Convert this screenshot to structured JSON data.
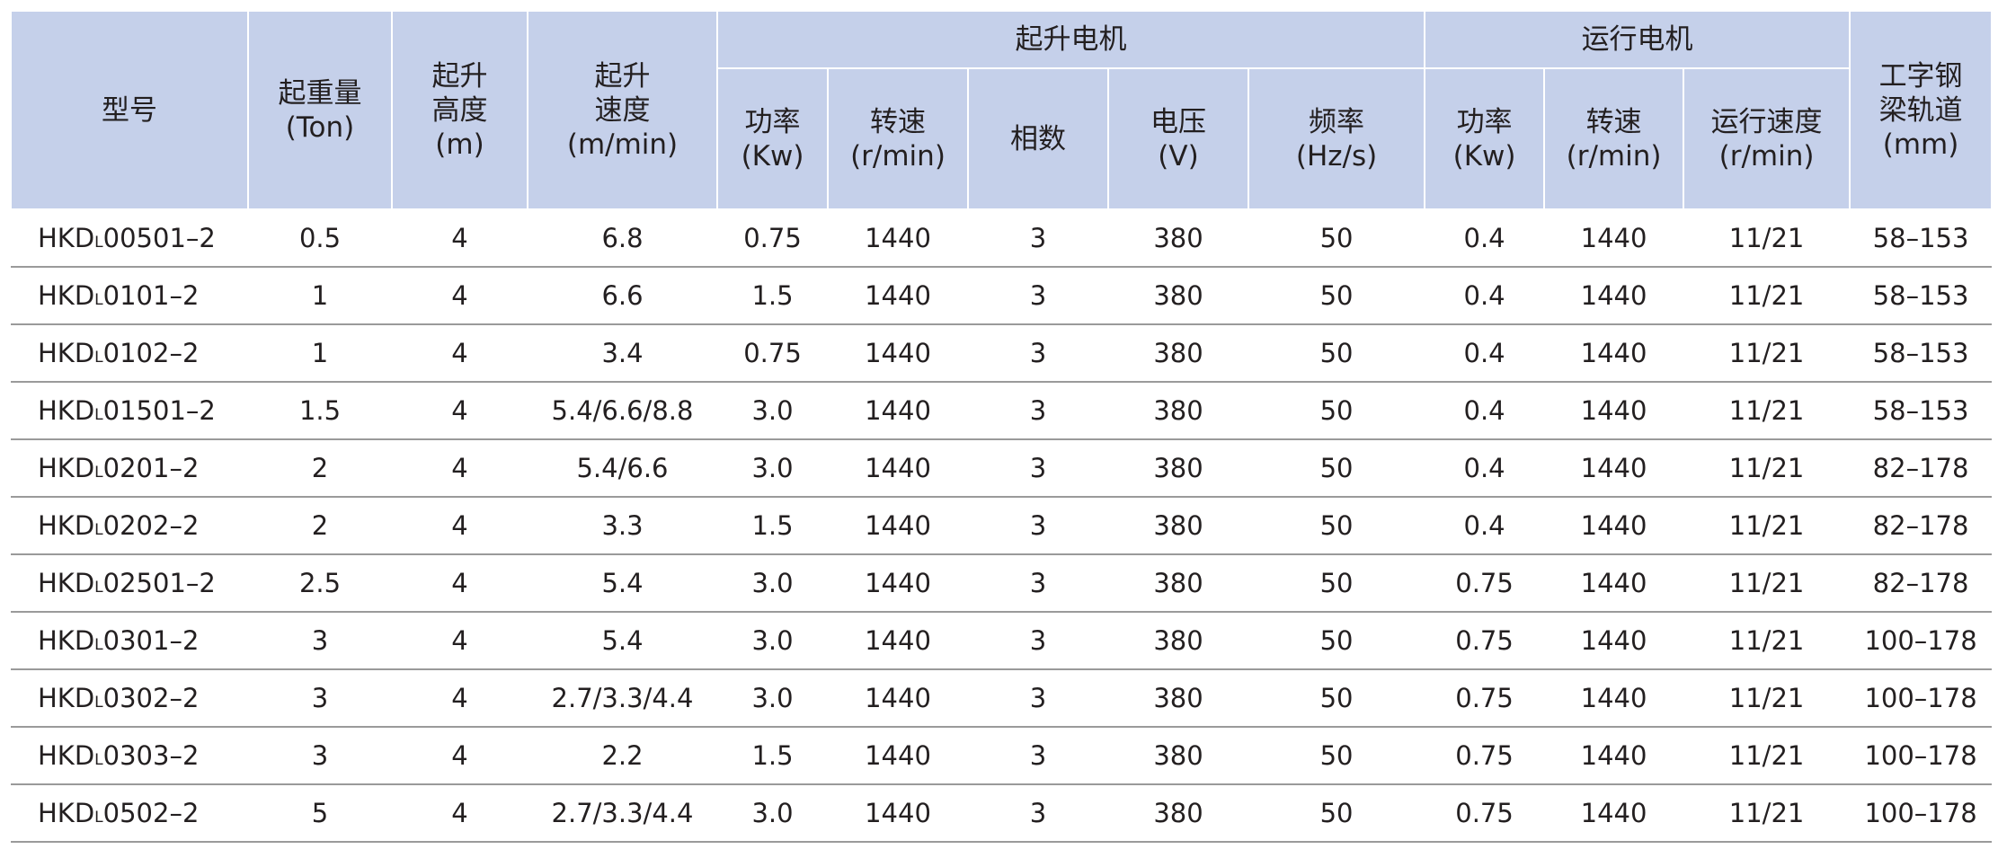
{
  "header": {
    "groups": [
      "起升电机",
      "运行电机"
    ],
    "columns": [
      [
        "型号"
      ],
      [
        "起重量",
        "(Ton)"
      ],
      [
        "起升",
        "高度",
        "(m)"
      ],
      [
        "起升",
        "速度",
        "(m/min)"
      ],
      [
        "功率",
        "(Kw)"
      ],
      [
        "转速",
        "(r/min)"
      ],
      [
        "相数"
      ],
      [
        "电压",
        "(V)"
      ],
      [
        "频率",
        "(Hz/s)"
      ],
      [
        "功率",
        "(Kw)"
      ],
      [
        "转速",
        "(r/min)"
      ],
      [
        "运行速度",
        "(r/min)"
      ],
      [
        "工字钢",
        "梁轨道",
        "(mm)"
      ]
    ]
  },
  "table": {
    "rows": [
      [
        [
          "HKD",
          "L",
          "00501–2"
        ],
        "0.5",
        "4",
        "6.8",
        "0.75",
        "1440",
        "3",
        "380",
        "50",
        "0.4",
        "1440",
        "11/21",
        "58–153"
      ],
      [
        [
          "HKD",
          "L",
          "0101–2"
        ],
        "1",
        "4",
        "6.6",
        "1.5",
        "1440",
        "3",
        "380",
        "50",
        "0.4",
        "1440",
        "11/21",
        "58–153"
      ],
      [
        [
          "HKD",
          "L",
          "0102–2"
        ],
        "1",
        "4",
        "3.4",
        "0.75",
        "1440",
        "3",
        "380",
        "50",
        "0.4",
        "1440",
        "11/21",
        "58–153"
      ],
      [
        [
          "HKD",
          "L",
          "01501–2"
        ],
        "1.5",
        "4",
        "5.4/6.6/8.8",
        "3.0",
        "1440",
        "3",
        "380",
        "50",
        "0.4",
        "1440",
        "11/21",
        "58–153"
      ],
      [
        [
          "HKD",
          "L",
          "0201–2"
        ],
        "2",
        "4",
        "5.4/6.6",
        "3.0",
        "1440",
        "3",
        "380",
        "50",
        "0.4",
        "1440",
        "11/21",
        "82–178"
      ],
      [
        [
          "HKD",
          "L",
          "0202–2"
        ],
        "2",
        "4",
        "3.3",
        "1.5",
        "1440",
        "3",
        "380",
        "50",
        "0.4",
        "1440",
        "11/21",
        "82–178"
      ],
      [
        [
          "HKD",
          "L",
          "02501–2"
        ],
        "2.5",
        "4",
        "5.4",
        "3.0",
        "1440",
        "3",
        "380",
        "50",
        "0.75",
        "1440",
        "11/21",
        "82–178"
      ],
      [
        [
          "HKD",
          "L",
          "0301–2"
        ],
        "3",
        "4",
        "5.4",
        "3.0",
        "1440",
        "3",
        "380",
        "50",
        "0.75",
        "1440",
        "11/21",
        "100–178"
      ],
      [
        [
          "HKD",
          "L",
          "0302–2"
        ],
        "3",
        "4",
        "2.7/3.3/4.4",
        "3.0",
        "1440",
        "3",
        "380",
        "50",
        "0.75",
        "1440",
        "11/21",
        "100–178"
      ],
      [
        [
          "HKD",
          "L",
          "0303–2"
        ],
        "3",
        "4",
        "2.2",
        "1.5",
        "1440",
        "3",
        "380",
        "50",
        "0.75",
        "1440",
        "11/21",
        "100–178"
      ],
      [
        [
          "HKD",
          "L",
          "0502–2"
        ],
        "5",
        "4",
        "2.7/3.3/4.4",
        "3.0",
        "1440",
        "3",
        "380",
        "50",
        "0.75",
        "1440",
        "11/21",
        "100–178"
      ]
    ]
  }
}
